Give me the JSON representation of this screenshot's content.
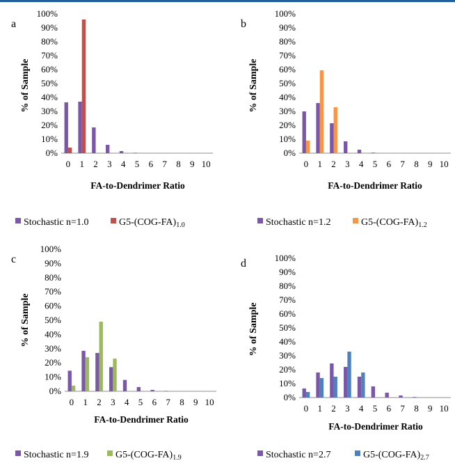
{
  "chart_data": [
    {
      "type": "bar",
      "panel_label": "a",
      "categories": [
        "0",
        "1",
        "2",
        "3",
        "4",
        "5",
        "6",
        "7",
        "8",
        "9",
        "10"
      ],
      "series": [
        {
          "name": "Stochastic n=1.0",
          "color": "#7b57a8",
          "values": [
            36.5,
            37,
            18.5,
            6,
            1.5,
            0.3,
            0,
            0,
            0,
            0,
            0
          ]
        },
        {
          "name": "G5-(COG-FA)",
          "name_subscript": "1.0",
          "color": "#c0504d",
          "values": [
            4,
            96,
            0,
            0,
            0,
            0,
            0,
            0,
            0,
            0,
            0
          ]
        }
      ],
      "yticks": [
        "0%",
        "10%",
        "20%",
        "30%",
        "40%",
        "50%",
        "60%",
        "70%",
        "80%",
        "90%",
        "100%"
      ],
      "ylim": [
        0,
        100
      ],
      "xlabel": "FA-to-Dendrimer Ratio",
      "ylabel": "% of Sample",
      "legend_position": "bottom"
    },
    {
      "type": "bar",
      "panel_label": "b",
      "categories": [
        "0",
        "1",
        "2",
        "3",
        "4",
        "5",
        "6",
        "7",
        "8",
        "9",
        "10"
      ],
      "series": [
        {
          "name": "Stochastic n=1.2",
          "color": "#7b57a8",
          "values": [
            30,
            36,
            21.5,
            8.5,
            2.5,
            0.4,
            0,
            0,
            0,
            0,
            0
          ]
        },
        {
          "name": "G5-(COG-FA)",
          "name_subscript": "1.2",
          "color": "#f79646",
          "values": [
            9,
            59.5,
            33,
            0,
            0,
            0,
            0,
            0,
            0,
            0,
            0
          ]
        }
      ],
      "yticks": [
        "0%",
        "10%",
        "20%",
        "30%",
        "40%",
        "50%",
        "60%",
        "70%",
        "80%",
        "90%",
        "100%"
      ],
      "ylim": [
        0,
        100
      ],
      "xlabel": "FA-to-Dendrimer Ratio",
      "ylabel": "% of Sample",
      "legend_position": "bottom"
    },
    {
      "type": "bar",
      "panel_label": "c",
      "categories": [
        "0",
        "1",
        "2",
        "3",
        "4",
        "5",
        "6",
        "7",
        "8",
        "9",
        "10"
      ],
      "series": [
        {
          "name": "Stochastic n=1.9",
          "color": "#7b57a8",
          "values": [
            14.5,
            28.5,
            27,
            17,
            8,
            3,
            1,
            0.3,
            0,
            0,
            0
          ]
        },
        {
          "name": "G5-(COG-FA)",
          "name_subscript": "1.9",
          "color": "#9bbb59",
          "values": [
            4,
            24,
            49,
            23,
            0,
            0,
            0,
            0,
            0,
            0,
            0
          ]
        }
      ],
      "yticks": [
        "0%",
        "10%",
        "20%",
        "30%",
        "40%",
        "50%",
        "60%",
        "70%",
        "80%",
        "90%",
        "100%"
      ],
      "ylim": [
        0,
        100
      ],
      "xlabel": "FA-to-Dendrimer Ratio",
      "ylabel": "% of Sample",
      "legend_position": "bottom"
    },
    {
      "type": "bar",
      "panel_label": "d",
      "categories": [
        "0",
        "1",
        "2",
        "3",
        "4",
        "5",
        "6",
        "7",
        "8",
        "9",
        "10"
      ],
      "series": [
        {
          "name": "Stochastic n=2.7",
          "color": "#7b57a8",
          "values": [
            6.5,
            18,
            24.5,
            22,
            15,
            8,
            3.5,
            1.5,
            0.4,
            0,
            0
          ]
        },
        {
          "name": "G5-(COG-FA)",
          "name_subscript": "2.7",
          "color": "#4f81bd",
          "values": [
            4,
            14,
            15,
            33,
            18,
            0,
            0,
            0,
            0,
            0,
            0
          ]
        }
      ],
      "yticks": [
        "0%",
        "10%",
        "20%",
        "30%",
        "40%",
        "50%",
        "60%",
        "70%",
        "80%",
        "90%",
        "100%"
      ],
      "ylim": [
        0,
        100
      ],
      "xlabel": "FA-to-Dendrimer Ratio",
      "ylabel": "% of Sample",
      "legend_position": "bottom"
    }
  ]
}
